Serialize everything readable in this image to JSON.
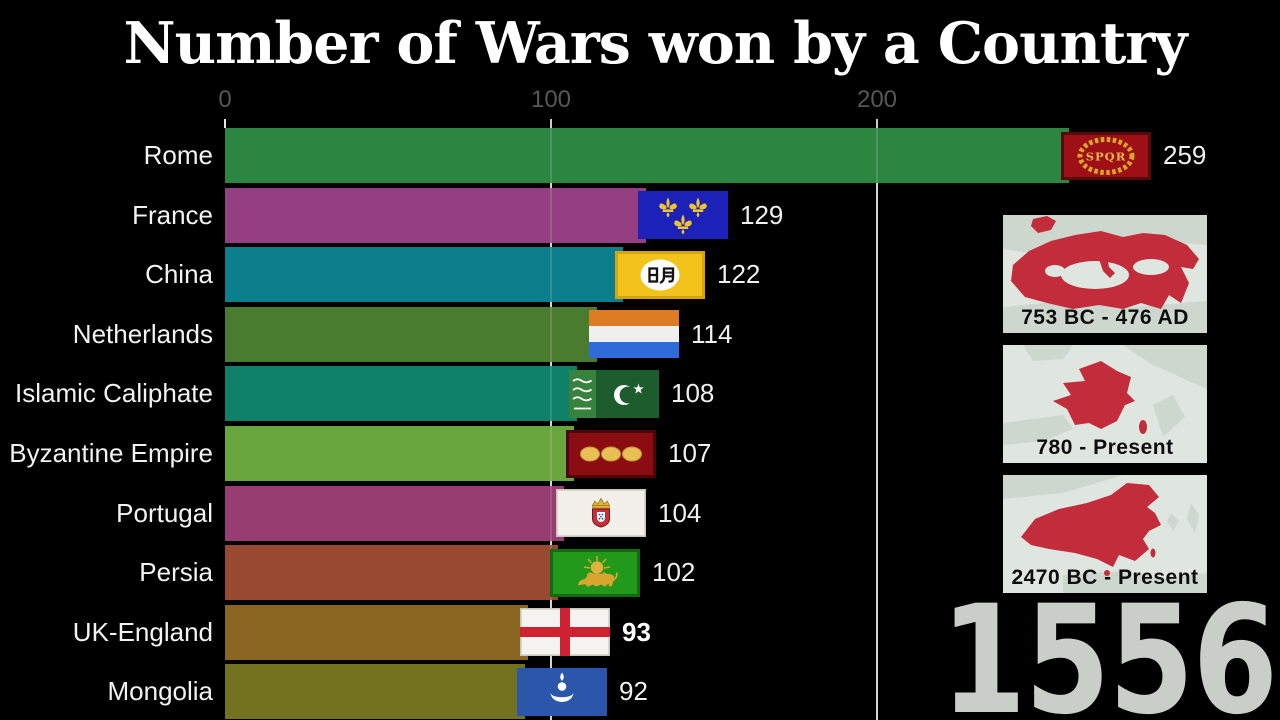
{
  "title": "Number of Wars won by a Country",
  "year_counter": "1556",
  "axis_ticks": [
    "0",
    "100",
    "200"
  ],
  "chart_data": {
    "type": "bar",
    "orientation": "horizontal",
    "title": "Number of Wars won by a Country",
    "categories": [
      "Rome",
      "France",
      "China",
      "Netherlands",
      "Islamic Caliphate",
      "Byzantine Empire",
      "Portugal",
      "Persia",
      "UK-England",
      "Mongolia"
    ],
    "values": [
      259,
      129,
      122,
      114,
      108,
      107,
      104,
      102,
      93,
      92
    ],
    "ticks": [
      0,
      100,
      200
    ],
    "xlim": [
      0,
      320
    ],
    "gridlines": true,
    "legend": false,
    "value_labels": true,
    "emphasized_value_index": 8,
    "bar_colors": [
      "#2d8542",
      "#943f81",
      "#0c7f8d",
      "#4a7c30",
      "#0e8168",
      "#69a63e",
      "#973d72",
      "#99492f",
      "#8a6620",
      "#72721f"
    ],
    "flag_icons": [
      "rome-spqr-flag",
      "france-fleur-de-lis-flag",
      "china-ming-flag",
      "netherlands-princes-flag",
      "islamic-caliphate-flag",
      "byzantine-empire-flag",
      "portugal-flag",
      "persia-lion-sun-flag",
      "england-st-george-flag",
      "mongolia-soyombo-flag"
    ]
  },
  "side_panel": {
    "maps": [
      {
        "caption": "753 BC - 476 AD",
        "region": "roman-empire-map"
      },
      {
        "caption": "780 - Present",
        "region": "france-map"
      },
      {
        "caption": "2470 BC - Present",
        "region": "china-map"
      }
    ]
  },
  "colors": {
    "background": "#000000",
    "title": "#ffffff",
    "axis_label": "#575757",
    "bar_label": "#f2f2f2",
    "value_label": "#f0f0f0",
    "year_counter": "#c9cec9",
    "map_background": "#dfe5df",
    "map_region_red": "#c32c3a",
    "caption_text": "#0d0d0d"
  }
}
